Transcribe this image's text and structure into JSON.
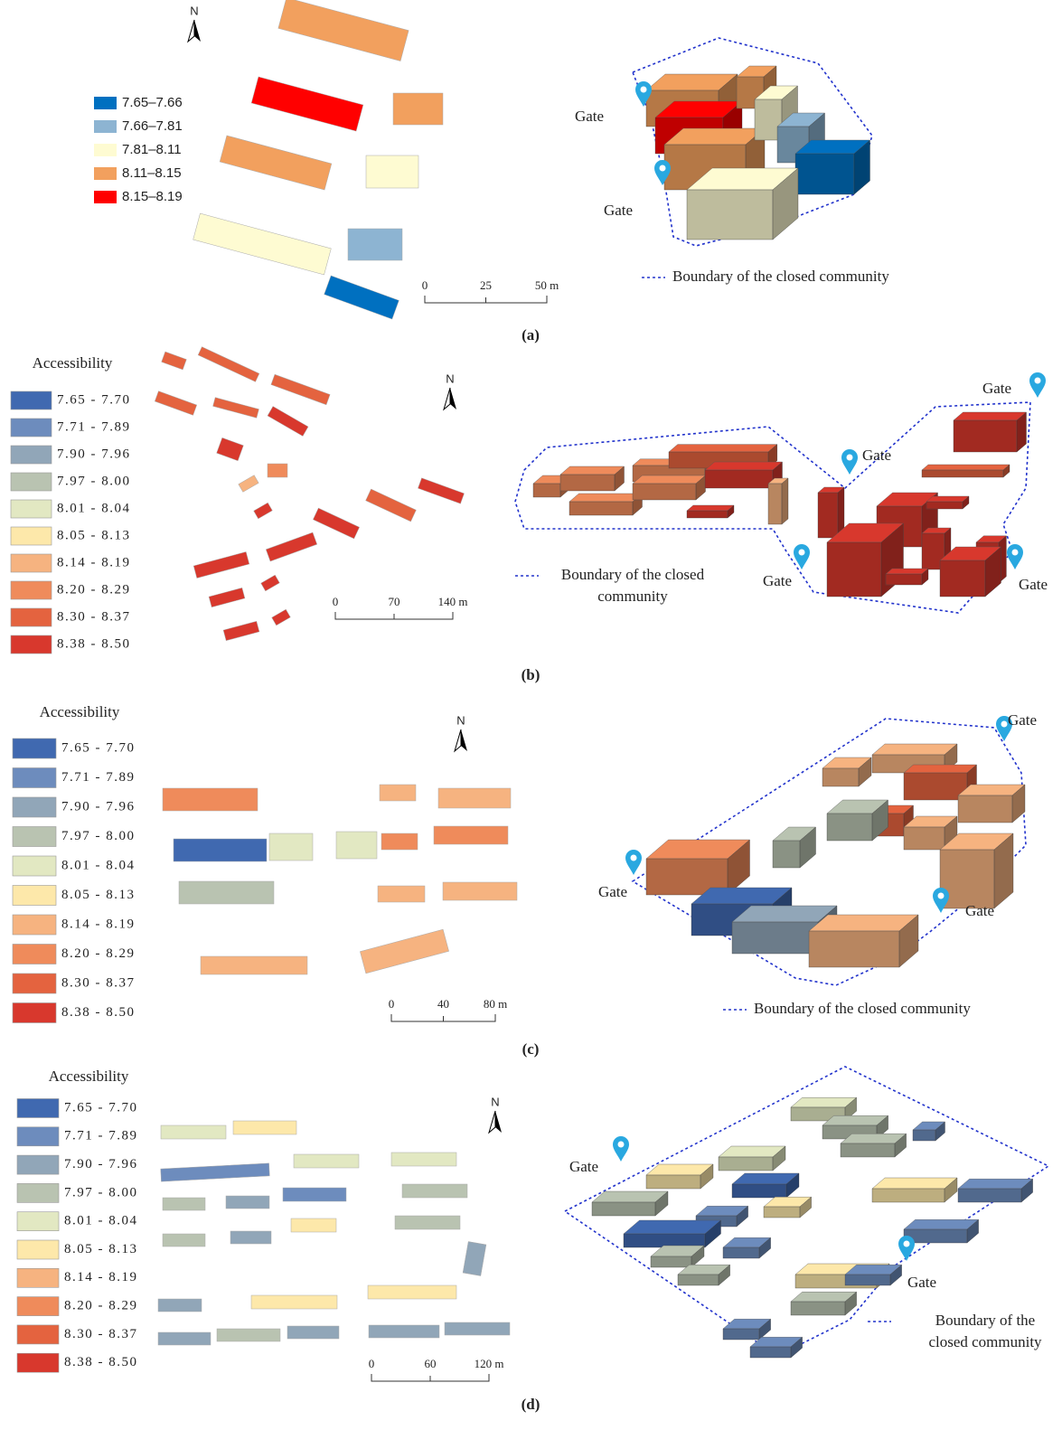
{
  "panels": [
    {
      "label": "(a)",
      "north": "N",
      "legend": [
        {
          "label": "7.65–7.66",
          "color": "#0070c0"
        },
        {
          "label": "7.66–7.81",
          "color": "#8db4d2"
        },
        {
          "label": "7.81–8.11",
          "color": "#fefbd2"
        },
        {
          "label": "8.11–8.15",
          "color": "#f2a05e"
        },
        {
          "label": "8.15–8.19",
          "color": "#ff0000"
        }
      ],
      "scale": [
        "0",
        "25",
        "50 m"
      ],
      "gates": [
        "Gate",
        "Gate"
      ],
      "boundary": [
        "Boundary of the closed community"
      ]
    },
    {
      "label": "(b)",
      "title": "Accessibility",
      "north": "N",
      "legend": [
        {
          "label": "7.65 - 7.70",
          "color": "#4069b0"
        },
        {
          "label": "7.71 - 7.89",
          "color": "#6d8cbd"
        },
        {
          "label": "7.90 - 7.96",
          "color": "#91a6b8"
        },
        {
          "label": "7.97 - 8.00",
          "color": "#b9c3b1"
        },
        {
          "label": "8.01 - 8.04",
          "color": "#e2e8c2"
        },
        {
          "label": "8.05 - 8.13",
          "color": "#fde8aa"
        },
        {
          "label": "8.14 - 8.19",
          "color": "#f6b380"
        },
        {
          "label": "8.20 - 8.29",
          "color": "#ef8b5b"
        },
        {
          "label": "8.30 - 8.37",
          "color": "#e4633f"
        },
        {
          "label": "8.38 - 8.50",
          "color": "#d8382d"
        }
      ],
      "scale": [
        "0",
        "70",
        "140 m"
      ],
      "gates": [
        "Gate",
        "Gate",
        "Gate",
        "Gate"
      ],
      "boundary": [
        "Boundary of the closed",
        "community"
      ]
    },
    {
      "label": "(c)",
      "title": "Accessibility",
      "north": "N",
      "legend": [
        {
          "label": "7.65 - 7.70",
          "color": "#4069b0"
        },
        {
          "label": "7.71 - 7.89",
          "color": "#6d8cbd"
        },
        {
          "label": "7.90 - 7.96",
          "color": "#91a6b8"
        },
        {
          "label": "7.97 - 8.00",
          "color": "#b9c3b1"
        },
        {
          "label": "8.01 - 8.04",
          "color": "#e2e8c2"
        },
        {
          "label": "8.05 - 8.13",
          "color": "#fde8aa"
        },
        {
          "label": "8.14 - 8.19",
          "color": "#f6b380"
        },
        {
          "label": "8.20 - 8.29",
          "color": "#ef8b5b"
        },
        {
          "label": "8.30 - 8.37",
          "color": "#e4633f"
        },
        {
          "label": "8.38 - 8.50",
          "color": "#d8382d"
        }
      ],
      "scale": [
        "0",
        "40",
        "80 m"
      ],
      "gates": [
        "Gate",
        "Gate",
        "Gate"
      ],
      "boundary": [
        "Boundary of the closed community"
      ]
    },
    {
      "label": "(d)",
      "title": "Accessibility",
      "north": "N",
      "legend": [
        {
          "label": "7.65 - 7.70",
          "color": "#4069b0"
        },
        {
          "label": "7.71 - 7.89",
          "color": "#6d8cbd"
        },
        {
          "label": "7.90 - 7.96",
          "color": "#91a6b8"
        },
        {
          "label": "7.97 - 8.00",
          "color": "#b9c3b1"
        },
        {
          "label": "8.01 - 8.04",
          "color": "#e2e8c2"
        },
        {
          "label": "8.05 - 8.13",
          "color": "#fde8aa"
        },
        {
          "label": "8.14 - 8.19",
          "color": "#f6b380"
        },
        {
          "label": "8.20 - 8.29",
          "color": "#ef8b5b"
        },
        {
          "label": "8.30 - 8.37",
          "color": "#e4633f"
        },
        {
          "label": "8.38 - 8.50",
          "color": "#d8382d"
        }
      ],
      "scale": [
        "0",
        "60",
        "120 m"
      ],
      "gates": [
        "Gate",
        "Gate"
      ],
      "boundary": [
        "Boundary of the",
        "closed community"
      ]
    }
  ]
}
